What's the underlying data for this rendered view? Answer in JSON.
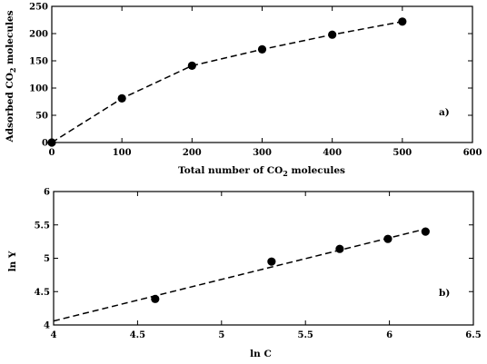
{
  "chart_data": [
    {
      "type": "scatter",
      "panel_label": "a)",
      "xlabel": "Total number  of CO",
      "xlabel_sub": "2",
      "xlabel_tail": " molecules",
      "ylabel": "Adsorbed CO",
      "ylabel_sub": "2",
      "ylabel_tail": " molecules",
      "xlim": [
        0,
        600
      ],
      "ylim": [
        0,
        250
      ],
      "xticks": [
        0,
        100,
        200,
        300,
        400,
        500,
        600
      ],
      "yticks": [
        0,
        50,
        100,
        150,
        200,
        250
      ],
      "xtick_labels": [
        "0",
        "100",
        "200",
        "300",
        "400",
        "500",
        "600"
      ],
      "ytick_labels": [
        "0",
        "50",
        "100",
        "150",
        "200",
        "250"
      ],
      "series": [
        {
          "marker": "filled-circle",
          "line": "dashed",
          "x": [
            0,
            100,
            200,
            300,
            400,
            500
          ],
          "y": [
            0,
            81,
            141,
            171,
            198,
            222
          ]
        }
      ],
      "grid": false
    },
    {
      "type": "scatter",
      "panel_label": "b)",
      "xlabel": "ln C",
      "ylabel": "ln Y",
      "xlim": [
        4,
        6.5
      ],
      "ylim": [
        4,
        6
      ],
      "xticks": [
        4,
        4.5,
        5,
        5.5,
        6,
        6.5
      ],
      "yticks": [
        4,
        4.5,
        5,
        5.5,
        6
      ],
      "xtick_labels": [
        "4",
        "4.5",
        "5",
        "5.5",
        "6",
        "6.5"
      ],
      "ytick_labels": [
        "4",
        "4.5",
        "5",
        "5.5",
        "6"
      ],
      "series": [
        {
          "marker": "filled-circle",
          "x": [
            4.605,
            5.298,
            5.704,
            5.991,
            6.215
          ],
          "y": [
            4.39,
            4.95,
            5.14,
            5.29,
            5.4
          ]
        }
      ],
      "fit_line": {
        "style": "dashed",
        "x": [
          4.0,
          6.215
        ],
        "y": [
          4.06,
          5.44
        ]
      },
      "grid": false
    }
  ]
}
